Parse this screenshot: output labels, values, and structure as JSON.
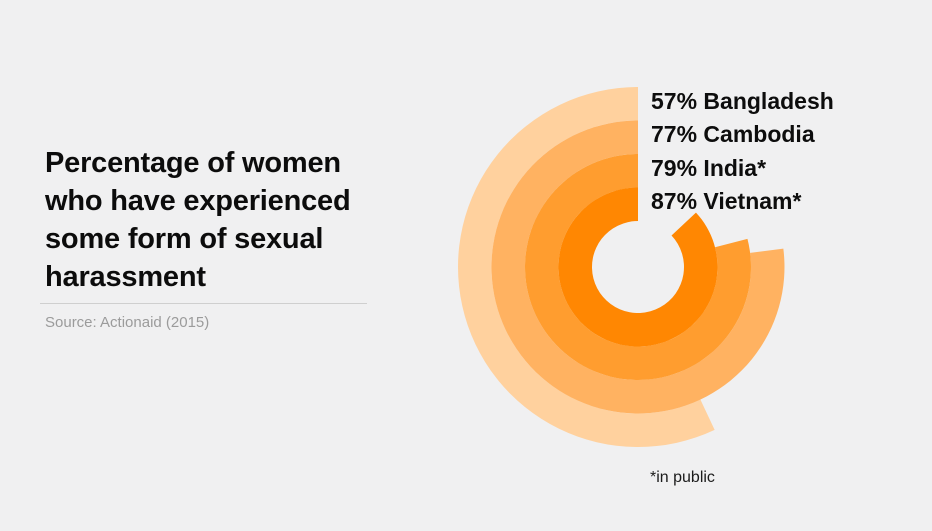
{
  "page": {
    "background": "#f0f0f1"
  },
  "title": {
    "text": "Percentage of women\nwho have experienced\nsome form of sexual\nharassment",
    "source": "Source: Actionaid (2015)"
  },
  "chart_data": {
    "type": "radial-bar",
    "title": "Percentage of women who have experienced some form of sexual harassment",
    "source": "Source: Actionaid (2015)",
    "footnote": "*in public",
    "unit": "%",
    "max_value": 100,
    "start_angle": "12-o-clock",
    "direction": "counterclockwise",
    "ring_order": "lowest value outermost, highest value innermost",
    "hole_color": "#f0f0f1",
    "series": [
      {
        "label": "Bangladesh",
        "value": 57,
        "color": "#ffd19e"
      },
      {
        "label": "Cambodia",
        "value": 77,
        "color": "#ffb261"
      },
      {
        "label": "India*",
        "value": 79,
        "color": "#ff9d2f"
      },
      {
        "label": "Vietnam*",
        "value": 87,
        "color": "#ff8702"
      }
    ],
    "legend_position": "top-right of chart",
    "legend_format": "{value}% {label}"
  }
}
